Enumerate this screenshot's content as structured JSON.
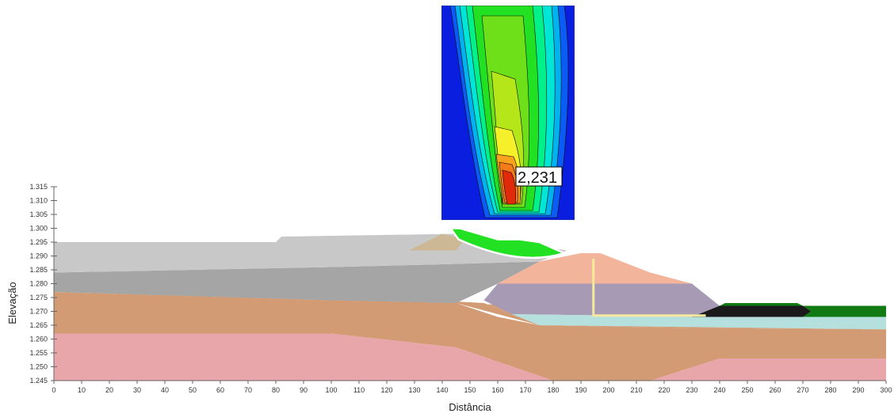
{
  "chart_data": {
    "type": "slope-stability-section",
    "xlabel": "Distância",
    "ylabel": "Elevação",
    "xlim": [
      0,
      300
    ],
    "ylim": [
      1245,
      1315
    ],
    "x_ticks": [
      "0",
      "10",
      "20",
      "30",
      "40",
      "50",
      "60",
      "70",
      "80",
      "90",
      "100",
      "110",
      "120",
      "130",
      "140",
      "150",
      "160",
      "170",
      "180",
      "190",
      "200",
      "210",
      "220",
      "230",
      "240",
      "250",
      "260",
      "270",
      "280",
      "290",
      "300"
    ],
    "y_ticks": [
      "1.245",
      "1.250",
      "1.255",
      "1.260",
      "1.265",
      "1.270",
      "1.275",
      "1.280",
      "1.285",
      "1.290",
      "1.295",
      "1.300",
      "1.305",
      "1.310",
      "1.315"
    ],
    "factor_of_safety_label": "2,231",
    "critical_slip_surface": {
      "x_range": [
        143,
        184
      ],
      "top_elevation": 1300,
      "bottom_elevation": 1288
    },
    "colors": {
      "light_gray": "#c8c8c8",
      "dark_gray": "#a5a5a5",
      "brown": "#d29b73",
      "pink": "#e9a6aa",
      "salmon": "#f2b49b",
      "purple": "#a79ab4",
      "cyan": "#b6e0de",
      "tan": "#cdb896",
      "black": "#1a1a1a",
      "dark_green": "#127a12",
      "slip_green": "#22e022",
      "drain_yellow": "#f7e8a0"
    }
  }
}
